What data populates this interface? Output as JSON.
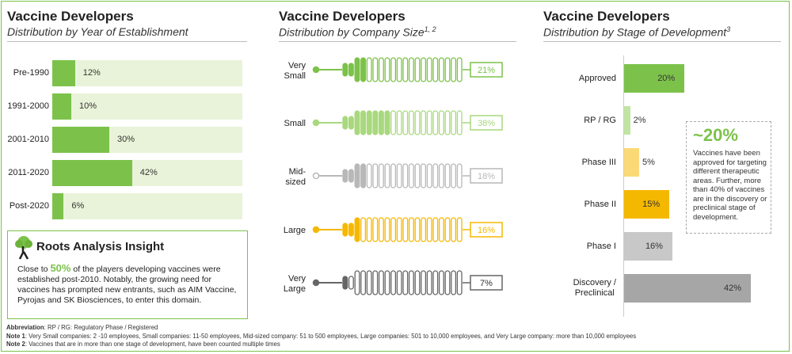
{
  "panels": {
    "left": {
      "title": "Vaccine Developers",
      "subtitle": "Distribution by Year of Establishment"
    },
    "middle": {
      "title": "Vaccine Developers",
      "subtitle": "Distribution by Company Size",
      "subtitle_sup": "1, 2"
    },
    "right": {
      "title": "Vaccine Developers",
      "subtitle": "Distribution by Stage of Development",
      "subtitle_sup": "3"
    }
  },
  "chart_data": [
    {
      "type": "bar",
      "orientation": "horizontal",
      "categories": [
        "Pre-1990",
        "1991-2000",
        "2001-2010",
        "2011-2020",
        "Post-2020"
      ],
      "values": [
        12,
        10,
        30,
        42,
        6
      ],
      "labels": [
        "12%",
        "10%",
        "30%",
        "42%",
        "6%"
      ],
      "unit": "%",
      "xlim": [
        0,
        100
      ]
    },
    {
      "type": "bar",
      "style": "pictorial",
      "categories": [
        "Very Small",
        "Small",
        "Mid-sized",
        "Large",
        "Very Large"
      ],
      "label_lines": [
        [
          "Very",
          "Small"
        ],
        [
          "Small"
        ],
        [
          "Mid-",
          "sized"
        ],
        [
          "Large"
        ],
        [
          "Very",
          "Large"
        ]
      ],
      "values": [
        21,
        38,
        18,
        16,
        7
      ],
      "labels": [
        "21%",
        "38%",
        "18%",
        "16%",
        "7%"
      ],
      "colors": [
        "#7cc24a",
        "#a9d87e",
        "#b8b8b8",
        "#f5b800",
        "#666666"
      ],
      "unit": "%"
    },
    {
      "type": "bar",
      "orientation": "horizontal",
      "categories": [
        "Approved",
        "RP / RG",
        "Phase III",
        "Phase II",
        "Phase I",
        "Discovery / Preclinical"
      ],
      "label_lines": [
        [
          "Approved"
        ],
        [
          "RP / RG"
        ],
        [
          "Phase III"
        ],
        [
          "Phase II"
        ],
        [
          "Phase I"
        ],
        [
          "Discovery /",
          "Preclinical"
        ]
      ],
      "values": [
        20,
        2,
        5,
        15,
        16,
        42
      ],
      "labels": [
        "20%",
        "2%",
        "5%",
        "15%",
        "16%",
        "42%"
      ],
      "colors": [
        "#7cc24a",
        "#c2e4a2",
        "#fbd977",
        "#f5b800",
        "#c8c8c8",
        "#a6a6a6"
      ],
      "unit": "%",
      "xlim": [
        0,
        42
      ]
    }
  ],
  "insight": {
    "title": "Roots Analysis Insight",
    "text_before": "Close to",
    "highlight": "50%",
    "text_after": "of the players developing vaccines were established post-2010. Notably, the growing need for vaccines has prompted new entrants, such as AIM Vaccine, Pyrojas and SK Biosciences, to enter this domain."
  },
  "callout": {
    "big": "~20%",
    "text": "Vaccines have been approved for targeting different therapeutic areas. Further, more than 40% of vaccines are in the discovery or preclinical stage of development."
  },
  "notes": {
    "abbr_label": "Abbreviation",
    "abbr_text": ": RP / RG: Regulatory Phase / Registered",
    "note1_label": "Note 1",
    "note1_text": ": Very Small companies: 2 -10 employees, Small companies: 11-50 employees, Mid-sized company: 51 to 500 employees, Large companies: 501 to 10,000 employees, and Very Large company: more than 10,000 employees",
    "note2_label": "Note 2",
    "note2_text": ": Vaccines that are in more than one stage of development, have been counted multiple times"
  },
  "colors": {
    "accent": "#7cc24a",
    "track": "#e9f3d9",
    "light_green": "#a9d87e",
    "yellow": "#f5b800",
    "grey": "#b8b8b8",
    "dark_grey": "#666666"
  }
}
